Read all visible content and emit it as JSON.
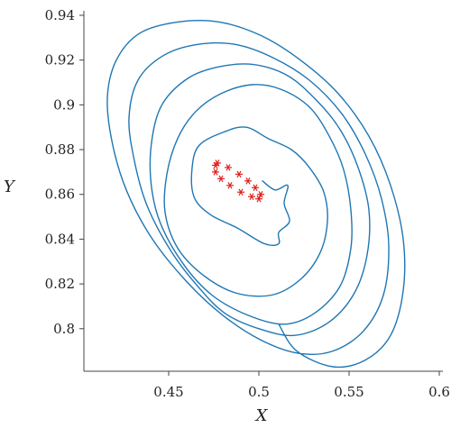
{
  "chart_data": {
    "type": "line",
    "title": "",
    "xlabel": "X",
    "ylabel": "Y",
    "xlim": [
      0.403,
      0.602
    ],
    "ylim": [
      0.781,
      0.942
    ],
    "x_ticks": [
      0.45,
      0.5,
      0.55,
      0.6
    ],
    "x_tick_labels": [
      "0.45",
      "0.5",
      "0.55",
      "0.6"
    ],
    "y_ticks": [
      0.8,
      0.82,
      0.84,
      0.86,
      0.88,
      0.9,
      0.92,
      0.94
    ],
    "y_tick_labels": [
      "0.8",
      "0.82",
      "0.84",
      "0.86",
      "0.88",
      "0.9",
      "0.92",
      "0.94"
    ],
    "grid": false,
    "legend": "none",
    "series": [
      {
        "color": "#1f77b4",
        "style": "line",
        "points": [
          [
            0.502,
            0.866
          ],
          [
            0.509,
            0.862
          ],
          [
            0.516,
            0.864
          ],
          [
            0.514,
            0.856
          ],
          [
            0.517,
            0.848
          ],
          [
            0.511,
            0.843
          ],
          [
            0.511,
            0.838
          ],
          [
            0.503,
            0.838
          ],
          [
            0.488,
            0.845
          ],
          [
            0.473,
            0.851
          ],
          [
            0.464,
            0.859
          ],
          [
            0.463,
            0.872
          ],
          [
            0.467,
            0.882
          ],
          [
            0.481,
            0.888
          ],
          [
            0.493,
            0.89
          ],
          [
            0.505,
            0.885
          ],
          [
            0.518,
            0.88
          ],
          [
            0.528,
            0.872
          ],
          [
            0.536,
            0.861
          ],
          [
            0.538,
            0.848
          ],
          [
            0.534,
            0.834
          ],
          [
            0.523,
            0.822
          ],
          [
            0.507,
            0.815
          ],
          [
            0.487,
            0.816
          ],
          [
            0.469,
            0.824
          ],
          [
            0.455,
            0.836
          ],
          [
            0.448,
            0.852
          ],
          [
            0.449,
            0.869
          ],
          [
            0.455,
            0.885
          ],
          [
            0.465,
            0.897
          ],
          [
            0.479,
            0.905
          ],
          [
            0.496,
            0.909
          ],
          [
            0.512,
            0.907
          ],
          [
            0.528,
            0.899
          ],
          [
            0.539,
            0.886
          ],
          [
            0.547,
            0.871
          ],
          [
            0.551,
            0.853
          ],
          [
            0.551,
            0.836
          ],
          [
            0.545,
            0.819
          ],
          [
            0.531,
            0.807
          ],
          [
            0.514,
            0.802
          ],
          [
            0.494,
            0.806
          ],
          [
            0.474,
            0.815
          ],
          [
            0.458,
            0.829
          ],
          [
            0.445,
            0.848
          ],
          [
            0.44,
            0.867
          ],
          [
            0.441,
            0.886
          ],
          [
            0.447,
            0.901
          ],
          [
            0.461,
            0.912
          ],
          [
            0.478,
            0.917
          ],
          [
            0.497,
            0.918
          ],
          [
            0.516,
            0.913
          ],
          [
            0.532,
            0.902
          ],
          [
            0.545,
            0.889
          ],
          [
            0.555,
            0.872
          ],
          [
            0.561,
            0.853
          ],
          [
            0.56,
            0.833
          ],
          [
            0.553,
            0.816
          ],
          [
            0.539,
            0.803
          ],
          [
            0.52,
            0.797
          ],
          [
            0.5,
            0.8
          ],
          [
            0.481,
            0.807
          ],
          [
            0.465,
            0.82
          ],
          [
            0.451,
            0.835
          ],
          [
            0.438,
            0.855
          ],
          [
            0.431,
            0.875
          ],
          [
            0.428,
            0.894
          ],
          [
            0.433,
            0.911
          ],
          [
            0.447,
            0.922
          ],
          [
            0.466,
            0.927
          ],
          [
            0.487,
            0.927
          ],
          [
            0.508,
            0.921
          ],
          [
            0.528,
            0.911
          ],
          [
            0.546,
            0.896
          ],
          [
            0.559,
            0.878
          ],
          [
            0.568,
            0.858
          ],
          [
            0.572,
            0.837
          ],
          [
            0.569,
            0.815
          ],
          [
            0.558,
            0.799
          ],
          [
            0.541,
            0.79
          ],
          [
            0.522,
            0.789
          ],
          [
            0.501,
            0.795
          ],
          [
            0.48,
            0.806
          ],
          [
            0.46,
            0.821
          ],
          [
            0.441,
            0.84
          ],
          [
            0.427,
            0.861
          ],
          [
            0.419,
            0.882
          ],
          [
            0.416,
            0.903
          ],
          [
            0.421,
            0.92
          ],
          [
            0.434,
            0.932
          ],
          [
            0.455,
            0.937
          ],
          [
            0.478,
            0.937
          ],
          [
            0.501,
            0.931
          ],
          [
            0.523,
            0.92
          ],
          [
            0.544,
            0.905
          ],
          [
            0.561,
            0.886
          ],
          [
            0.573,
            0.864
          ],
          [
            0.58,
            0.84
          ],
          [
            0.58,
            0.817
          ],
          [
            0.573,
            0.797
          ],
          [
            0.559,
            0.786
          ],
          [
            0.541,
            0.783
          ],
          [
            0.521,
            0.79
          ],
          [
            0.511,
            0.802
          ]
        ]
      },
      {
        "color": "#e0201b",
        "style": "markers",
        "points": [
          [
            0.477,
            0.874
          ],
          [
            0.483,
            0.872
          ],
          [
            0.489,
            0.869
          ],
          [
            0.494,
            0.866
          ],
          [
            0.498,
            0.863
          ],
          [
            0.501,
            0.86
          ],
          [
            0.5,
            0.858
          ],
          [
            0.496,
            0.859
          ],
          [
            0.49,
            0.861
          ],
          [
            0.484,
            0.864
          ],
          [
            0.479,
            0.867
          ],
          [
            0.476,
            0.87
          ],
          [
            0.476,
            0.873
          ]
        ]
      }
    ]
  }
}
